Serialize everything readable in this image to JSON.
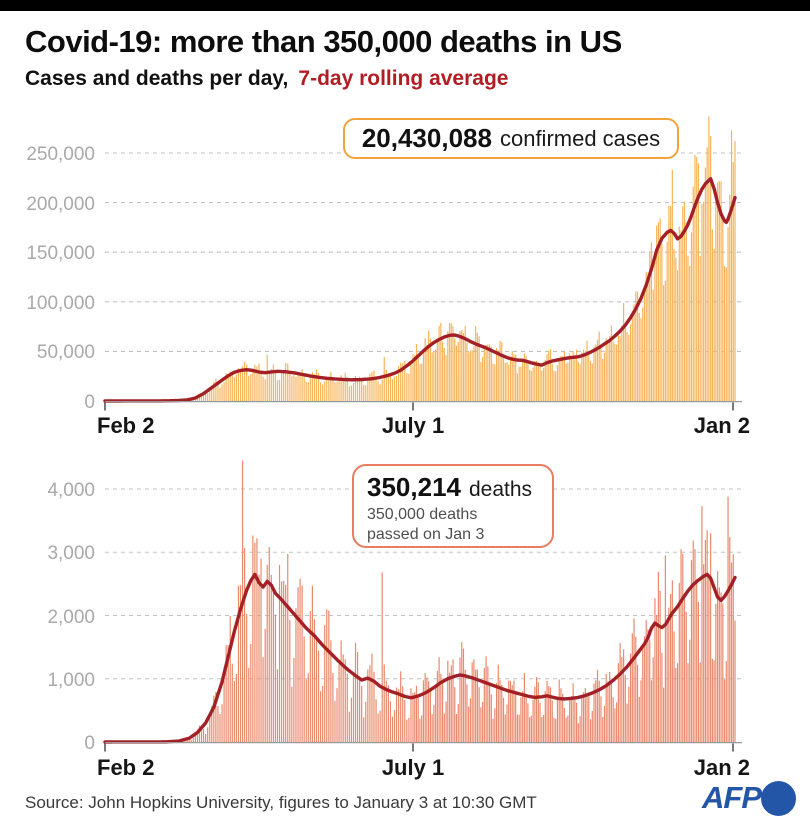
{
  "header": {
    "title": "Covid-19: more than 350,000 deaths in US",
    "subtitle_plain": "Cases and deaths per day,",
    "subtitle_highlight": "7-day rolling average",
    "highlight_color": "#b01e24"
  },
  "footer": {
    "source": "Source: John Hopkins University, figures to January 3 at 10:30 GMT",
    "logo_text": "AFP",
    "logo_color": "#2456a8"
  },
  "chart_data": [
    {
      "id": "cases",
      "type": "bar+line",
      "description": "Daily confirmed Covid-19 cases in the US (bars) with 7-day rolling average (line), Feb 2 to Jan 2",
      "bar_color": "#f7b45a",
      "line_color": "#a32126",
      "annotation": {
        "value": "20,430,088",
        "label": "confirmed cases",
        "border_color": "#f3a33c"
      },
      "x_axis": {
        "tick_labels": [
          "Feb 2",
          "July 1",
          "Jan 2"
        ],
        "tick_days": [
          0,
          150,
          335
        ],
        "days_total": 335
      },
      "y_axis": {
        "ticks": [
          {
            "label": "250,000",
            "value": 250000
          },
          {
            "label": "200,000",
            "value": 200000
          },
          {
            "label": "150,000",
            "value": 150000
          },
          {
            "label": "100,000",
            "value": 100000
          },
          {
            "label": "50,000",
            "value": 50000
          },
          {
            "label": "0",
            "value": 0
          }
        ],
        "max": 280000,
        "grid": "dashed"
      },
      "avg_series": [
        [
          0,
          0
        ],
        [
          22,
          40
        ],
        [
          30,
          150
        ],
        [
          36,
          500
        ],
        [
          40,
          1100
        ],
        [
          44,
          3000
        ],
        [
          48,
          7500
        ],
        [
          52,
          13500
        ],
        [
          56,
          19500
        ],
        [
          60,
          25500
        ],
        [
          63,
          29000
        ],
        [
          66,
          30800
        ],
        [
          69,
          31500
        ],
        [
          72,
          30800
        ],
        [
          75,
          29200
        ],
        [
          78,
          28500
        ],
        [
          81,
          29300
        ],
        [
          84,
          29900
        ],
        [
          88,
          29500
        ],
        [
          92,
          28400
        ],
        [
          96,
          26800
        ],
        [
          100,
          25200
        ],
        [
          104,
          23900
        ],
        [
          108,
          22900
        ],
        [
          112,
          22200
        ],
        [
          116,
          21700
        ],
        [
          120,
          21400
        ],
        [
          124,
          21500
        ],
        [
          128,
          22100
        ],
        [
          131,
          22700
        ],
        [
          134,
          23800
        ],
        [
          138,
          25900
        ],
        [
          141,
          28000
        ],
        [
          144,
          31000
        ],
        [
          147,
          35500
        ],
        [
          150,
          40500
        ],
        [
          153,
          45500
        ],
        [
          156,
          50500
        ],
        [
          159,
          55000
        ],
        [
          162,
          59000
        ],
        [
          165,
          62000
        ],
        [
          168,
          64500
        ],
        [
          171,
          66200
        ],
        [
          174,
          66500
        ],
        [
          177,
          65000
        ],
        [
          180,
          62800
        ],
        [
          183,
          60000
        ],
        [
          186,
          57500
        ],
        [
          189,
          55500
        ],
        [
          192,
          53500
        ],
        [
          195,
          51000
        ],
        [
          198,
          48500
        ],
        [
          201,
          46000
        ],
        [
          204,
          43800
        ],
        [
          207,
          42200
        ],
        [
          210,
          41200
        ],
        [
          213,
          41000
        ],
        [
          216,
          39500
        ],
        [
          219,
          38000
        ],
        [
          222,
          36800
        ],
        [
          224,
          36200
        ],
        [
          227,
          38600
        ],
        [
          230,
          40300
        ],
        [
          233,
          41400
        ],
        [
          236,
          42400
        ],
        [
          239,
          43400
        ],
        [
          242,
          44000
        ],
        [
          245,
          44600
        ],
        [
          248,
          46200
        ],
        [
          251,
          48400
        ],
        [
          254,
          51000
        ],
        [
          257,
          54000
        ],
        [
          260,
          57500
        ],
        [
          263,
          61000
        ],
        [
          266,
          65500
        ],
        [
          269,
          70500
        ],
        [
          272,
          76500
        ],
        [
          275,
          84000
        ],
        [
          278,
          93000
        ],
        [
          281,
          103500
        ],
        [
          284,
          117000
        ],
        [
          287,
          133000
        ],
        [
          290,
          152000
        ],
        [
          293,
          164000
        ],
        [
          296,
          170000
        ],
        [
          298,
          172000
        ],
        [
          300,
          169000
        ],
        [
          302,
          163500
        ],
        [
          304,
          166000
        ],
        [
          306,
          171500
        ],
        [
          308,
          178000
        ],
        [
          310,
          187000
        ],
        [
          312,
          197000
        ],
        [
          314,
          206000
        ],
        [
          316,
          213500
        ],
        [
          318,
          219000
        ],
        [
          320,
          222500
        ],
        [
          321,
          224000
        ],
        [
          323,
          214000
        ],
        [
          325,
          200000
        ],
        [
          327,
          188500
        ],
        [
          329,
          181500
        ],
        [
          330,
          180000
        ],
        [
          331,
          183500
        ],
        [
          333,
          193500
        ],
        [
          335,
          205000
        ]
      ],
      "bar_spikes": [
        [
          79,
          46500
        ],
        [
          136,
          44500
        ],
        [
          287,
          160000
        ],
        [
          299,
          233000
        ],
        [
          313,
          246000
        ],
        [
          333,
          273000
        ],
        [
          335,
          262000
        ]
      ],
      "bar_noise": {
        "weekday_factors": [
          0.78,
          0.82,
          0.97,
          1.08,
          1.16,
          1.2,
          1.05
        ],
        "rand_min": 0.86,
        "rand_span": 0.28,
        "seed": 13
      }
    },
    {
      "id": "deaths",
      "type": "bar+line",
      "description": "Daily Covid-19 deaths in the US (bars) with 7-day rolling average (line), Feb 2 to Jan 2",
      "bar_color": "#ea8a6d",
      "line_color": "#a32126",
      "annotation": {
        "value": "350,214",
        "label": "deaths",
        "sub_line1": "350,000 deaths",
        "sub_line2": "passed on Jan 3",
        "border_color": "#e87d5f"
      },
      "x_axis": {
        "tick_labels": [
          "Feb 2",
          "July 1",
          "Jan 2"
        ],
        "tick_days": [
          0,
          150,
          335
        ],
        "days_total": 335
      },
      "y_axis": {
        "ticks": [
          {
            "label": "4,000",
            "value": 4000
          },
          {
            "label": "3,000",
            "value": 3000
          },
          {
            "label": "2,000",
            "value": 2000
          },
          {
            "label": "1,000",
            "value": 1000
          },
          {
            "label": "0",
            "value": 0
          }
        ],
        "max": 4500,
        "grid": "dashed"
      },
      "avg_series": [
        [
          0,
          0
        ],
        [
          30,
          2
        ],
        [
          36,
          15
        ],
        [
          41,
          60
        ],
        [
          45,
          150
        ],
        [
          49,
          300
        ],
        [
          53,
          550
        ],
        [
          57,
          950
        ],
        [
          60,
          1350
        ],
        [
          63,
          1750
        ],
        [
          66,
          2100
        ],
        [
          69,
          2400
        ],
        [
          71,
          2550
        ],
        [
          73,
          2650
        ],
        [
          75,
          2520
        ],
        [
          77,
          2450
        ],
        [
          79,
          2540
        ],
        [
          81,
          2480
        ],
        [
          83,
          2350
        ],
        [
          86,
          2250
        ],
        [
          90,
          2100
        ],
        [
          94,
          1950
        ],
        [
          98,
          1800
        ],
        [
          102,
          1680
        ],
        [
          106,
          1530
        ],
        [
          110,
          1400
        ],
        [
          114,
          1270
        ],
        [
          118,
          1150
        ],
        [
          122,
          1050
        ],
        [
          125,
          980
        ],
        [
          128,
          1010
        ],
        [
          131,
          960
        ],
        [
          134,
          880
        ],
        [
          137,
          830
        ],
        [
          140,
          790
        ],
        [
          143,
          760
        ],
        [
          146,
          720
        ],
        [
          149,
          700
        ],
        [
          152,
          720
        ],
        [
          155,
          750
        ],
        [
          158,
          790
        ],
        [
          162,
          860
        ],
        [
          166,
          940
        ],
        [
          170,
          1000
        ],
        [
          174,
          1040
        ],
        [
          177,
          1060
        ],
        [
          180,
          1045
        ],
        [
          184,
          1015
        ],
        [
          188,
          975
        ],
        [
          192,
          935
        ],
        [
          196,
          895
        ],
        [
          200,
          855
        ],
        [
          204,
          815
        ],
        [
          208,
          785
        ],
        [
          212,
          755
        ],
        [
          216,
          725
        ],
        [
          220,
          705
        ],
        [
          224,
          715
        ],
        [
          227,
          730
        ],
        [
          230,
          710
        ],
        [
          233,
          690
        ],
        [
          237,
          680
        ],
        [
          241,
          690
        ],
        [
          245,
          705
        ],
        [
          249,
          735
        ],
        [
          253,
          775
        ],
        [
          257,
          825
        ],
        [
          261,
          890
        ],
        [
          265,
          975
        ],
        [
          269,
          1075
        ],
        [
          273,
          1190
        ],
        [
          277,
          1330
        ],
        [
          280,
          1440
        ],
        [
          283,
          1550
        ],
        [
          285,
          1650
        ],
        [
          287,
          1800
        ],
        [
          289,
          1880
        ],
        [
          291,
          1840
        ],
        [
          293,
          1810
        ],
        [
          295,
          1855
        ],
        [
          297,
          1950
        ],
        [
          299,
          2040
        ],
        [
          302,
          2140
        ],
        [
          305,
          2270
        ],
        [
          308,
          2390
        ],
        [
          311,
          2490
        ],
        [
          314,
          2560
        ],
        [
          317,
          2620
        ],
        [
          319,
          2650
        ],
        [
          321,
          2590
        ],
        [
          323,
          2440
        ],
        [
          325,
          2290
        ],
        [
          327,
          2240
        ],
        [
          329,
          2300
        ],
        [
          331,
          2390
        ],
        [
          333,
          2490
        ],
        [
          335,
          2600
        ]
      ],
      "bar_spikes": [
        [
          67,
          4450
        ],
        [
          73,
          3150
        ],
        [
          76,
          2900
        ],
        [
          85,
          2800
        ],
        [
          135,
          2680
        ],
        [
          295,
          2950
        ],
        [
          304,
          3050
        ],
        [
          316,
          3730
        ],
        [
          321,
          3300
        ],
        [
          331,
          3880
        ]
      ],
      "bar_noise": {
        "weekday_factors": [
          0.48,
          0.62,
          1.1,
          1.28,
          1.27,
          1.18,
          0.88
        ],
        "rand_min": 0.82,
        "rand_span": 0.36,
        "seed": 29
      }
    }
  ]
}
